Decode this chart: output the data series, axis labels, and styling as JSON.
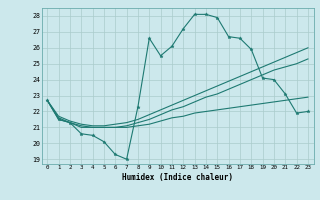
{
  "xlabel": "Humidex (Indice chaleur)",
  "bg_color": "#cce8ec",
  "grid_color": "#aacccc",
  "line_color": "#1e7a72",
  "xlim": [
    -0.5,
    23.5
  ],
  "ylim": [
    18.7,
    28.5
  ],
  "xticks": [
    0,
    1,
    2,
    3,
    4,
    5,
    6,
    7,
    8,
    9,
    10,
    11,
    12,
    13,
    14,
    15,
    16,
    17,
    18,
    19,
    20,
    21,
    22,
    23
  ],
  "yticks": [
    19,
    20,
    21,
    22,
    23,
    24,
    25,
    26,
    27,
    28
  ],
  "series1_y": [
    22.7,
    21.5,
    21.3,
    20.6,
    20.5,
    20.1,
    19.3,
    19.0,
    22.3,
    26.6,
    25.5,
    26.1,
    27.2,
    28.1,
    28.1,
    27.9,
    26.7,
    26.6,
    25.9,
    24.1,
    24.0,
    23.1,
    21.9,
    22.0
  ],
  "series2_y": [
    22.7,
    21.7,
    21.4,
    21.2,
    21.1,
    21.1,
    21.2,
    21.3,
    21.5,
    21.8,
    22.1,
    22.4,
    22.7,
    23.0,
    23.3,
    23.6,
    23.9,
    24.2,
    24.5,
    24.8,
    25.1,
    25.4,
    25.7,
    26.0
  ],
  "series3_y": [
    22.7,
    21.6,
    21.3,
    21.1,
    21.0,
    21.0,
    21.0,
    21.1,
    21.3,
    21.5,
    21.8,
    22.1,
    22.3,
    22.6,
    22.9,
    23.1,
    23.4,
    23.7,
    24.0,
    24.3,
    24.6,
    24.8,
    25.0,
    25.3
  ],
  "series4_y": [
    22.7,
    21.5,
    21.3,
    21.0,
    21.0,
    21.0,
    21.0,
    21.0,
    21.1,
    21.2,
    21.4,
    21.6,
    21.7,
    21.9,
    22.0,
    22.1,
    22.2,
    22.3,
    22.4,
    22.5,
    22.6,
    22.7,
    22.8,
    22.9
  ]
}
